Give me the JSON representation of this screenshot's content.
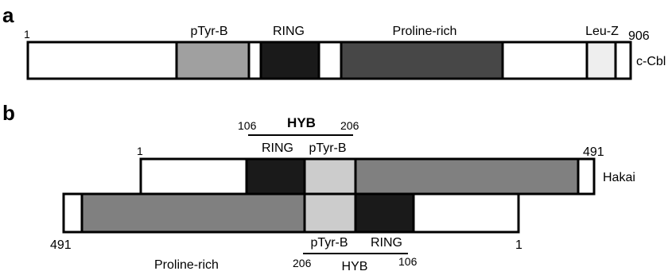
{
  "panel_a": {
    "label": "a",
    "start_num": "1",
    "end_num": "906",
    "protein": "c-Cbl",
    "domains": {
      "ptyrb": "pTyr-B",
      "ring": "RING",
      "proline": "Proline-rich",
      "leuz": "Leu-Z"
    }
  },
  "panel_b": {
    "label": "b",
    "hyb_top": {
      "title": "HYB",
      "start": "106",
      "end": "206",
      "sub_ring": "RING",
      "sub_ptyrb": "pTyr-B"
    },
    "hakai_top": {
      "start": "1",
      "end": "491",
      "name": "Hakai"
    },
    "hakai_bottom": {
      "left_num": "491",
      "right_num": "1",
      "proline": "Proline-rich"
    },
    "hyb_bottom": {
      "title": "HYB",
      "start": "206",
      "end": "106",
      "sub_ptyrb": "pTyr-B",
      "sub_ring": "RING"
    }
  },
  "colors": {
    "white": "#ffffff",
    "ptyrb_a": "#a0a0a0",
    "ring": "#1a1a1a",
    "proline_a": "#474747",
    "leuz": "#eeeeee",
    "ptyrb_b": "#cccccc",
    "proline_b": "#808080"
  }
}
